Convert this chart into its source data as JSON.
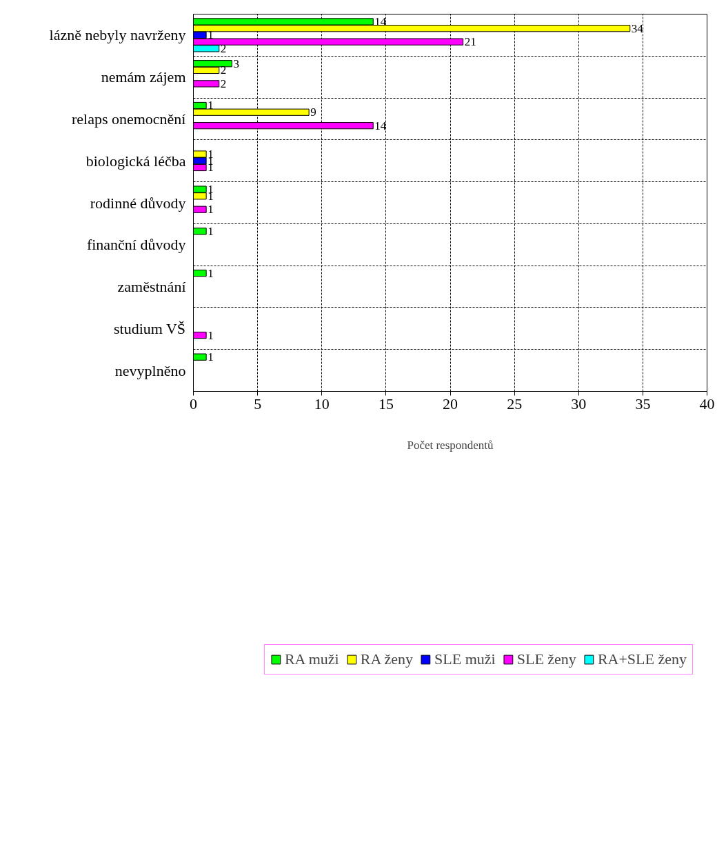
{
  "chart_data": {
    "type": "bar",
    "orientation": "horizontal",
    "xlabel": "Počet respondentů",
    "categories": [
      "lázně nebyly navrženy",
      "nemám zájem",
      "relaps onemocnění",
      "biologická léčba",
      "rodinné důvody",
      "finanční důvody",
      "zaměstnání",
      "studium VŠ",
      "nevyplněno"
    ],
    "series": [
      {
        "name": "RA muži",
        "color": "#00ff00",
        "values": [
          14,
          3,
          1,
          null,
          1,
          1,
          1,
          null,
          1
        ]
      },
      {
        "name": "RA ženy",
        "color": "#ffff00",
        "values": [
          34,
          2,
          9,
          1,
          1,
          null,
          null,
          null,
          null
        ]
      },
      {
        "name": "SLE muži",
        "color": "#0000ff",
        "values": [
          1,
          null,
          null,
          1,
          null,
          null,
          null,
          null,
          null
        ]
      },
      {
        "name": "SLE ženy",
        "color": "#ff00ff",
        "values": [
          21,
          2,
          14,
          1,
          1,
          null,
          null,
          1,
          null
        ]
      },
      {
        "name": "RA+SLE ženy",
        "color": "#00ffff",
        "values": [
          2,
          null,
          null,
          null,
          null,
          null,
          null,
          null,
          null
        ]
      }
    ],
    "xlim": [
      0,
      40
    ],
    "xticks": [
      0,
      5,
      10,
      15,
      20,
      25,
      30,
      35,
      40
    ],
    "grid": true,
    "legend": "bottom",
    "data_labels": true
  }
}
